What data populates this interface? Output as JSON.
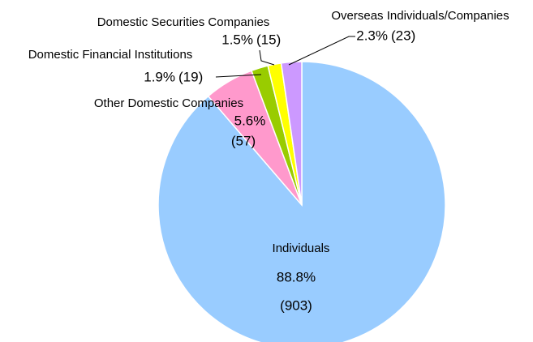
{
  "chart_data": {
    "type": "pie",
    "categories": [
      "Individuals",
      "Other Domestic Companies",
      "Domestic Financial Institutions",
      "Domestic Securities Companies",
      "Overseas Individuals/Companies"
    ],
    "values": [
      88.8,
      5.6,
      1.9,
      1.5,
      2.3
    ],
    "value_labels": [
      "88.8%",
      "5.6%",
      "1.9%",
      "1.5%",
      "2.3%"
    ],
    "counts": [
      903,
      57,
      19,
      15,
      23
    ],
    "count_labels": [
      "(903)",
      "(57)",
      "(19)",
      "(15)",
      "(23)"
    ],
    "colors": [
      "#99ccff",
      "#ff99cc",
      "#99cc00",
      "#ffff00",
      "#cc99ff"
    ]
  }
}
